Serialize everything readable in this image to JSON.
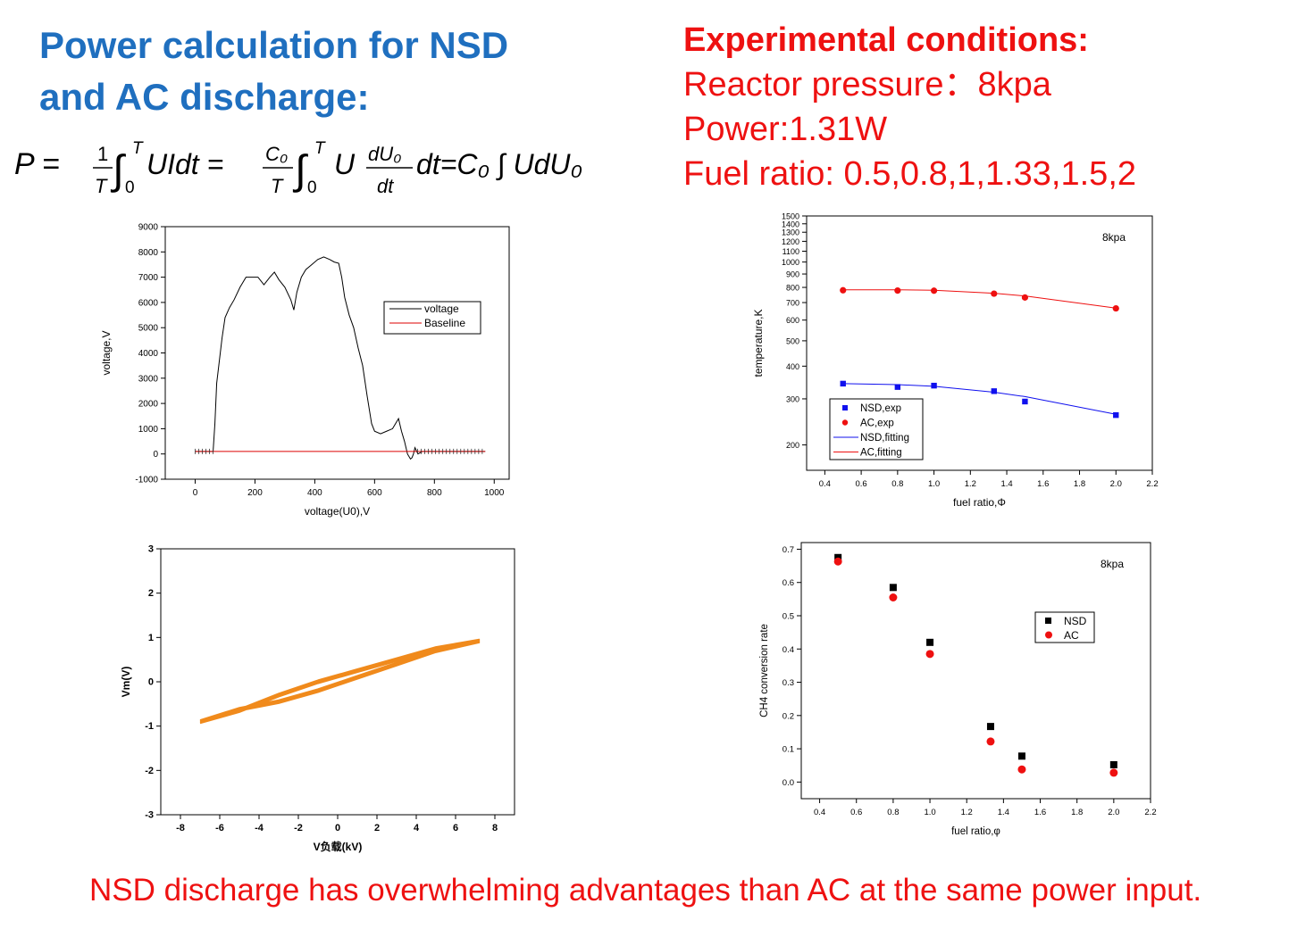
{
  "title": {
    "line1": "Power calculation for NSD",
    "line2": "and AC discharge:"
  },
  "formula": {
    "text": "P = (1/T)∫₀ᵀ UIdt = (C₀/T)∫₀ᵀ U (dU₀/dt) dt = C₀ ∫ UdU₀",
    "lhs": "P =",
    "f1_num": "1",
    "f1_den": "T",
    "int_sup": "T",
    "int_sub": "0",
    "term1": "UIdt =",
    "f2_num": "C₀",
    "f2_den": "T",
    "term2": "U",
    "f3_num": "dU₀",
    "f3_den": "dt",
    "term3": "dt=C₀ ∫ UdU₀"
  },
  "conditions": {
    "heading": "Experimental conditions:",
    "lines": [
      "Reactor pressure：8kpa",
      "Power:1.31W",
      "Fuel ratio: 0.5,0.8,1,1.33,1.5,2"
    ]
  },
  "footer": "NSD discharge has overwhelming advantages than AC at the same power input.",
  "colors": {
    "title": "#1f6fbf",
    "conditions": "#ee1111",
    "nsd": "#1010ee",
    "ac": "#ee1010",
    "lissajous": "#f08a1c"
  },
  "chart_data": [
    {
      "id": "voltage",
      "type": "line",
      "xlabel": "voltage(U0),V",
      "ylabel": "voltage,V",
      "xlim": [
        -100,
        1050
      ],
      "ylim": [
        -1000,
        9000
      ],
      "xticks": [
        0,
        200,
        400,
        600,
        800,
        1000
      ],
      "yticks": [
        -1000,
        0,
        1000,
        2000,
        3000,
        4000,
        5000,
        6000,
        7000,
        8000,
        9000
      ],
      "legend": [
        "voltage",
        "Baseline"
      ],
      "legend_position": "right",
      "series": [
        {
          "name": "voltage",
          "color": "#000000",
          "x": [
            0,
            40,
            60,
            66,
            72,
            80,
            90,
            100,
            115,
            130,
            150,
            170,
            190,
            210,
            230,
            250,
            265,
            280,
            300,
            320,
            330,
            340,
            355,
            370,
            390,
            410,
            430,
            450,
            465,
            480,
            490,
            500,
            515,
            530,
            545,
            560,
            575,
            590,
            600,
            620,
            640,
            660,
            680,
            690,
            700,
            710,
            720,
            725,
            730,
            735,
            745,
            760,
            800,
            900,
            970
          ],
          "y": [
            100,
            100,
            100,
            1200,
            2800,
            3600,
            4600,
            5400,
            5800,
            6100,
            6600,
            7000,
            7000,
            7000,
            6700,
            7000,
            7200,
            6900,
            6600,
            6100,
            5700,
            6400,
            7000,
            7300,
            7500,
            7700,
            7800,
            7700,
            7600,
            7550,
            7000,
            6200,
            5500,
            5000,
            4200,
            3500,
            2300,
            1200,
            900,
            800,
            900,
            1000,
            1400,
            900,
            500,
            0,
            -200,
            -150,
            0,
            250,
            0,
            100,
            100,
            100,
            100
          ]
        },
        {
          "name": "Baseline",
          "color": "#dd0000",
          "x": [
            0,
            970
          ],
          "y": [
            100,
            100
          ]
        }
      ]
    },
    {
      "id": "temperature",
      "type": "scatter",
      "title": "8kpa",
      "xlabel": "fuel ratio,Φ",
      "ylabel": "temperature,K",
      "scale_y": "log",
      "xlim": [
        0.3,
        2.2
      ],
      "ylim": [
        160,
        1500
      ],
      "xticks": [
        0.4,
        0.6,
        0.8,
        1.0,
        1.2,
        1.4,
        1.6,
        1.8,
        2.0,
        2.2
      ],
      "yticks": [
        200,
        300,
        400,
        500,
        600,
        700,
        800,
        900,
        1000,
        1100,
        1200,
        1300,
        1400,
        1500
      ],
      "legend": [
        "NSD,exp",
        "AC,exp",
        "NSD,fitting",
        "AC,fitting"
      ],
      "legend_position": "bottom-left",
      "series": [
        {
          "name": "NSD,exp",
          "color": "#1010ee",
          "marker": "square",
          "x": [
            0.5,
            0.8,
            1.0,
            1.33,
            1.5,
            2.0
          ],
          "y": [
            343,
            333,
            337,
            321,
            293,
            260
          ]
        },
        {
          "name": "AC,exp",
          "color": "#ee1010",
          "marker": "circle",
          "x": [
            0.5,
            0.8,
            1.0,
            1.33,
            1.5,
            2.0
          ],
          "y": [
            780,
            778,
            777,
            757,
            732,
            665
          ]
        },
        {
          "name": "NSD,fitting",
          "color": "#1010ee",
          "x": [
            0.5,
            0.8,
            1.0,
            1.33,
            1.5,
            2.0
          ],
          "y": [
            343,
            340,
            335,
            318,
            306,
            262
          ]
        },
        {
          "name": "AC,fitting",
          "color": "#ee1010",
          "x": [
            0.5,
            0.8,
            1.0,
            1.33,
            1.5,
            2.0
          ],
          "y": [
            783,
            783,
            780,
            760,
            742,
            667
          ]
        }
      ]
    },
    {
      "id": "lissajous",
      "type": "line",
      "xlabel": "V负载(kV)",
      "ylabel": "Vm(V)",
      "xlim": [
        -9,
        9
      ],
      "ylim": [
        -3,
        3
      ],
      "xticks": [
        -8,
        -6,
        -4,
        -2,
        0,
        2,
        4,
        6,
        8
      ],
      "yticks": [
        -3,
        -2,
        -1,
        0,
        1,
        2,
        3
      ],
      "series": [
        {
          "name": "",
          "color": "#f08a1c",
          "x": [
            -7,
            -5,
            -3,
            -1,
            1,
            3,
            5,
            7.2,
            5,
            3,
            1,
            -1,
            -3,
            -5,
            -7
          ],
          "y": [
            -0.9,
            -0.62,
            -0.45,
            -0.2,
            0.1,
            0.4,
            0.7,
            0.92,
            0.75,
            0.5,
            0.25,
            0,
            -0.3,
            -0.65,
            -0.9
          ]
        }
      ]
    },
    {
      "id": "conversion",
      "type": "scatter",
      "title": "8kpa",
      "xlabel": "fuel ratio,φ",
      "ylabel": "CH4 conversion rate",
      "xlim": [
        0.3,
        2.2
      ],
      "ylim": [
        -0.05,
        0.72
      ],
      "xticks": [
        0.4,
        0.6,
        0.8,
        1.0,
        1.2,
        1.4,
        1.6,
        1.8,
        2.0,
        2.2
      ],
      "yticks": [
        0.0,
        0.1,
        0.2,
        0.3,
        0.4,
        0.5,
        0.6,
        0.7
      ],
      "legend": [
        "NSD",
        "AC"
      ],
      "legend_position": "right",
      "series": [
        {
          "name": "NSD",
          "color": "#000000",
          "marker": "square",
          "x": [
            0.5,
            0.8,
            1.0,
            1.33,
            1.5,
            2.0
          ],
          "y": [
            0.675,
            0.585,
            0.42,
            0.167,
            0.078,
            0.052
          ]
        },
        {
          "name": "AC",
          "color": "#ee1010",
          "marker": "circle",
          "x": [
            0.5,
            0.8,
            1.0,
            1.33,
            1.5,
            2.0
          ],
          "y": [
            0.663,
            0.555,
            0.385,
            0.122,
            0.038,
            0.028
          ]
        }
      ]
    }
  ]
}
